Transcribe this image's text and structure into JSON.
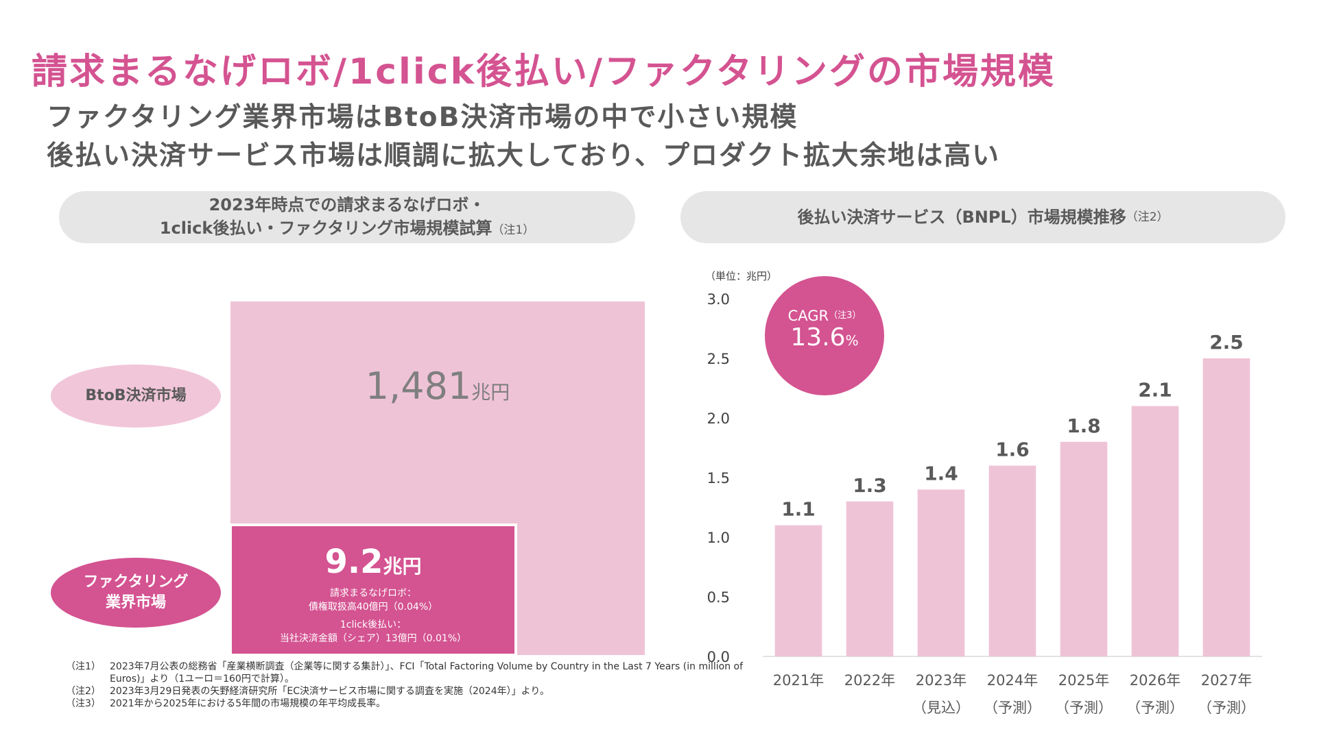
{
  "title": "請求まるなげロボ/1click後払い/ファクタリングの市場規模",
  "subtitle_lines": [
    "ファクタリング業界市場はBtoB決済市場の中で小さい規模",
    "後払い決済サービス市場は順調に拡大しており、プロダクト拡大余地は高い"
  ],
  "left_panel": {
    "header_line1": "2023年時点での請求まるなげロボ・",
    "header_line2": "1click後払い・ファクタリング市場規模試算",
    "header_note": "（注1）",
    "btob_label": "BtoB決済市場",
    "btob_value_num": "1,481",
    "btob_value_unit": "兆円",
    "factoring_label_1": "ファクタリング",
    "factoring_label_2": "業界市場",
    "factoring_value_num": "9.2",
    "factoring_value_unit": "兆円",
    "detail_1": "請求まるなげロボ：",
    "detail_2": "債権取扱高40億円（0.04%）",
    "detail_3": "1click後払い：",
    "detail_4": "当社決済金額（シェア）13億円（0.01%）"
  },
  "right_panel": {
    "header": "後払い決済サービス（BNPL）市場規模推移",
    "header_note": "（注2）",
    "unit_label": "（単位：兆円）",
    "cagr_label": "CAGR",
    "cagr_note": "（注3）",
    "cagr_value": "13.6",
    "cagr_unit": "%"
  },
  "footnotes": [
    {
      "key": "（注1）",
      "text": "2023年7月公表の総務省「産業横断調査（企業等に関する集計）」、FCI「Total Factoring Volume by Country in the Last 7 Years (in million of Euros)」より（1ユーロ＝160円で計算）。"
    },
    {
      "key": "（注2）",
      "text": "2023年3月29日発表の矢野経済研究所「EC決済サービス市場に関する調査を実施（2024年）」より。"
    },
    {
      "key": "（注3）",
      "text": "2021年から2025年における5年間の市場規模の年平均成長率。"
    }
  ],
  "colors": {
    "accent": "#d45391",
    "bar": "#efc3d6",
    "ellipse_light": "#f1c6d8",
    "text_gray": "#595959"
  },
  "chart_data": {
    "type": "bar",
    "categories": [
      "2021年",
      "2022年",
      "2023年",
      "2024年",
      "2025年",
      "2026年",
      "2027年"
    ],
    "category_sublabels": [
      "",
      "",
      "（見込）",
      "（予測）",
      "（予測）",
      "（予測）",
      "（予測）"
    ],
    "values": [
      1.1,
      1.3,
      1.4,
      1.6,
      1.8,
      2.1,
      2.5
    ],
    "value_labels": [
      "1.1",
      "1.3",
      "1.4",
      "1.6",
      "1.8",
      "2.1",
      "2.5"
    ],
    "yticks": [
      "0.0",
      "0.5",
      "1.0",
      "1.5",
      "2.0",
      "2.5",
      "3.0"
    ],
    "ylim": [
      0,
      3.0
    ],
    "grid": false
  }
}
